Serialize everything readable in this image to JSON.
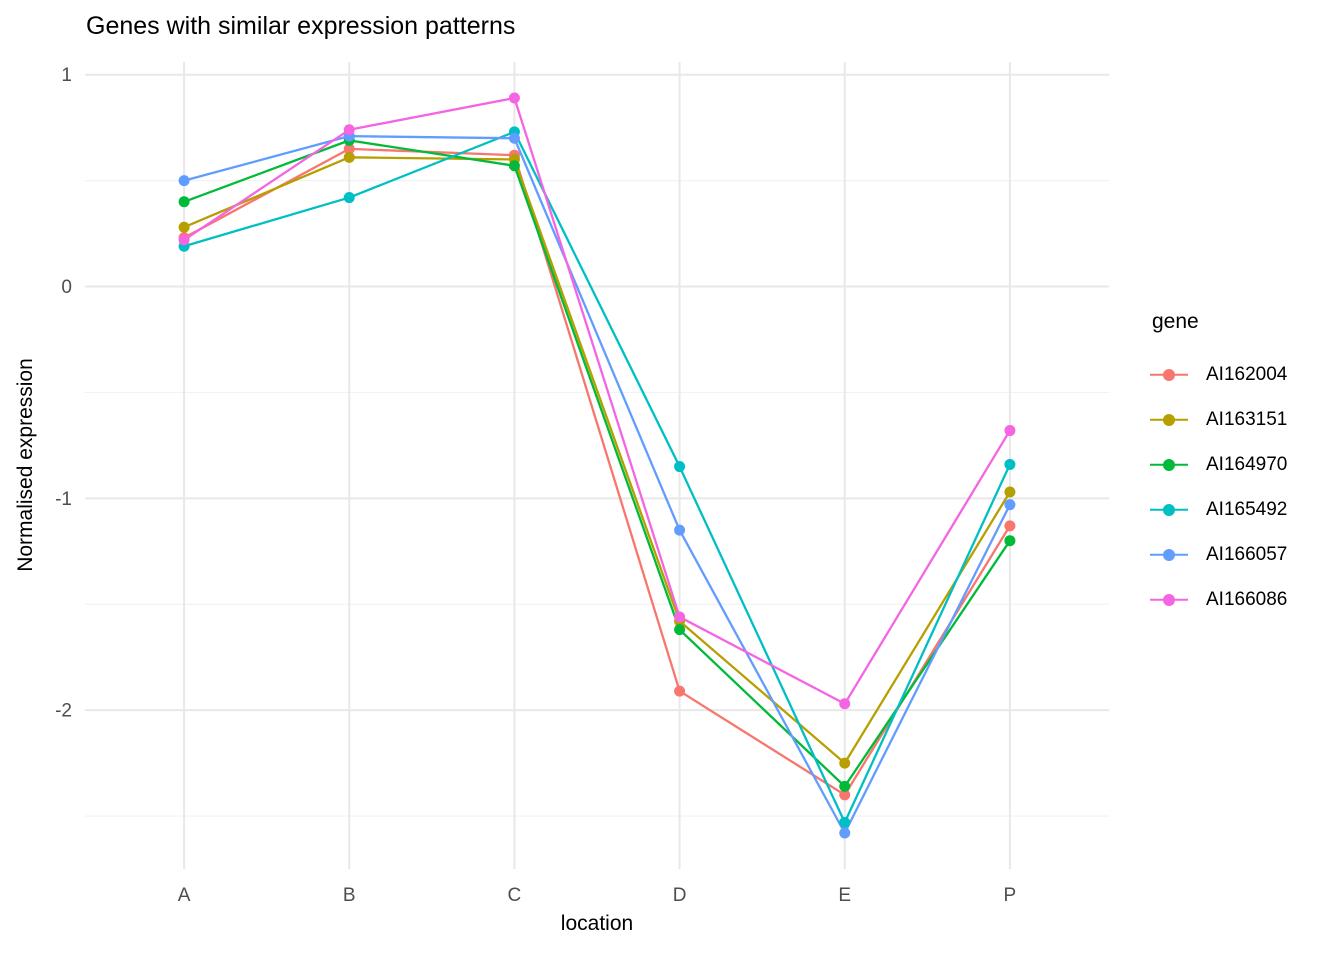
{
  "chart_data": {
    "type": "line",
    "title": "Genes with similar expression patterns",
    "xlabel": "location",
    "ylabel": "Normalised expression",
    "legend_title": "gene",
    "legend_position": "right",
    "categories": [
      "A",
      "B",
      "C",
      "D",
      "E",
      "P"
    ],
    "series": [
      {
        "name": "AI162004",
        "color": "#F8766D",
        "values": [
          0.23,
          0.65,
          0.62,
          -1.91,
          -2.4,
          -1.13
        ]
      },
      {
        "name": "AI163151",
        "color": "#B79F00",
        "values": [
          0.28,
          0.61,
          0.6,
          -1.58,
          -2.25,
          -0.97
        ]
      },
      {
        "name": "AI164970",
        "color": "#00BA38",
        "values": [
          0.4,
          0.69,
          0.57,
          -1.62,
          -2.36,
          -1.2
        ]
      },
      {
        "name": "AI165492",
        "color": "#00BFC4",
        "values": [
          0.19,
          0.42,
          0.73,
          -0.85,
          -2.53,
          -0.84
        ]
      },
      {
        "name": "AI166057",
        "color": "#619CFF",
        "values": [
          0.5,
          0.71,
          0.7,
          -1.15,
          -2.58,
          -1.03
        ]
      },
      {
        "name": "AI166086",
        "color": "#F564E3",
        "values": [
          0.22,
          0.74,
          0.89,
          -1.56,
          -1.97,
          -0.68
        ]
      }
    ],
    "y_major_ticks": [
      1,
      0,
      -1,
      -2
    ],
    "y_minor_ticks": [
      0.5,
      -0.5,
      -1.5,
      -2.5
    ],
    "ylim": [
      -2.75,
      1.06
    ],
    "grid": "horizontal major+minor, vertical major at categories",
    "colors": {
      "grid_major": "#E8E8E8",
      "grid_minor": "#F2F2F2",
      "tick_label": "#4D4D4D",
      "title_text": "#000000"
    }
  }
}
